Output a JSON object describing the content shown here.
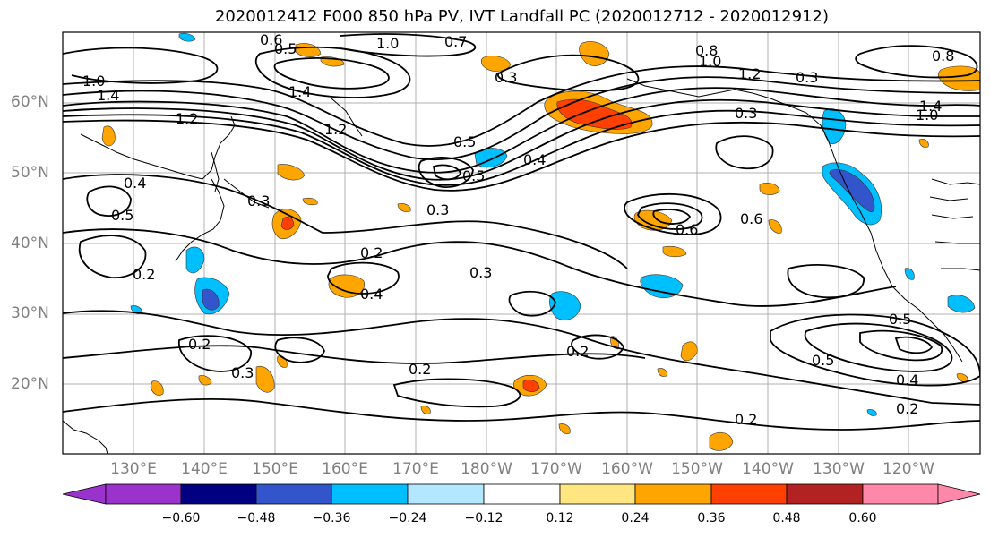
{
  "title": "2020012412 F000 850 hPa PV, IVT Landfall PC (2020012712 - 2020012912)",
  "lat_labels": [
    "60°N",
    "50°N",
    "40°N",
    "30°N",
    "20°N"
  ],
  "lon_labels": [
    "130°E",
    "140°E",
    "150°E",
    "160°E",
    "170°E",
    "180°W",
    "170°W",
    "160°W",
    "150°W",
    "140°W",
    "130°W",
    "120°W"
  ],
  "contour_labels": [
    "0.6",
    "0.5",
    "1.0",
    "0.7",
    "0.8",
    "1.4",
    "1.0",
    "1.4",
    "1.2",
    "1.2",
    "0.3",
    "0.5",
    "0.4",
    "0.5",
    "0.3",
    "0.6",
    "0.6",
    "0.4",
    "0.5",
    "0.3",
    "0.2",
    "0.4",
    "0.3",
    "0.2",
    "0.2",
    "0.3",
    "0.2",
    "0.2",
    "0.5",
    "0.5",
    "0.4",
    "0.2",
    "0.2",
    "1.0",
    "1.4",
    "0.3",
    "1.0",
    "0.3",
    "0.8",
    "1.2"
  ],
  "colorbar": {
    "ticks": [
      "−0.60",
      "−0.48",
      "−0.36",
      "−0.24",
      "−0.12",
      "0.12",
      "0.24",
      "0.36",
      "0.48",
      "0.60"
    ],
    "colors": [
      "#9933cc",
      "#000080",
      "#3355cc",
      "#00bfff",
      "#b3e6ff",
      "#ffffff",
      "#ffe680",
      "#ffa500",
      "#ff4000",
      "#b22222",
      "#ff88aa"
    ]
  },
  "legend_colors": {
    "neg_strong": "#3355cc",
    "neg_mid": "#00bfff",
    "neg_weak": "#b3e6ff",
    "pos_weak": "#ffe680",
    "pos_mid": "#ffa500",
    "pos_strong": "#ff4000"
  }
}
